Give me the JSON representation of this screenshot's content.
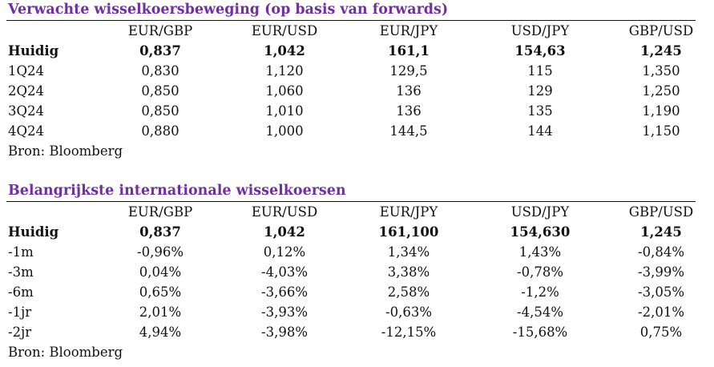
{
  "accent_color": "#7030A0",
  "forecast": {
    "title": "Verwachte wisselkoersbeweging (op basis van forwards)",
    "columns": [
      "EUR/GBP",
      "EUR/USD",
      "EUR/JPY",
      "USD/JPY",
      "GBP/USD"
    ],
    "rows": [
      {
        "label": "Huidig",
        "values": [
          "0,837",
          "1,042",
          "161,1",
          "154,63",
          "1,245"
        ]
      },
      {
        "label": "1Q24",
        "values": [
          "0,830",
          "1,120",
          "129,5",
          "115",
          "1,350"
        ]
      },
      {
        "label": "2Q24",
        "values": [
          "0,850",
          "1,060",
          "136",
          "129",
          "1,250"
        ]
      },
      {
        "label": "3Q24",
        "values": [
          "0,850",
          "1,010",
          "136",
          "135",
          "1,190"
        ]
      },
      {
        "label": "4Q24",
        "values": [
          "0,880",
          "1,000",
          "144,5",
          "144",
          "1,150"
        ]
      }
    ],
    "source": "Bron: Bloomberg"
  },
  "rates": {
    "title": "Belangrijkste internationale wisselkoersen",
    "columns": [
      "EUR/GBP",
      "EUR/USD",
      "EUR/JPY",
      "USD/JPY",
      "GBP/USD"
    ],
    "rows": [
      {
        "label": "Huidig",
        "values": [
          "0,837",
          "1,042",
          "161,100",
          "154,630",
          "1,245"
        ]
      },
      {
        "label": "-1m",
        "values": [
          "-0,96%",
          "0,12%",
          "1,34%",
          "1,43%",
          "-0,84%"
        ]
      },
      {
        "label": "-3m",
        "values": [
          "0,04%",
          "-4,03%",
          "3,38%",
          "-0,78%",
          "-3,99%"
        ]
      },
      {
        "label": "-6m",
        "values": [
          "0,65%",
          "-3,66%",
          "2,58%",
          "-1,2%",
          "-3,05%"
        ]
      },
      {
        "label": "-1jr",
        "values": [
          "2,01%",
          "-3,93%",
          "-0,63%",
          "-4,54%",
          "-2,01%"
        ]
      },
      {
        "label": "-2jr",
        "values": [
          "4,94%",
          "-3,98%",
          "-12,15%",
          "-15,68%",
          "0,75%"
        ]
      }
    ],
    "source": "Bron: Bloomberg"
  }
}
